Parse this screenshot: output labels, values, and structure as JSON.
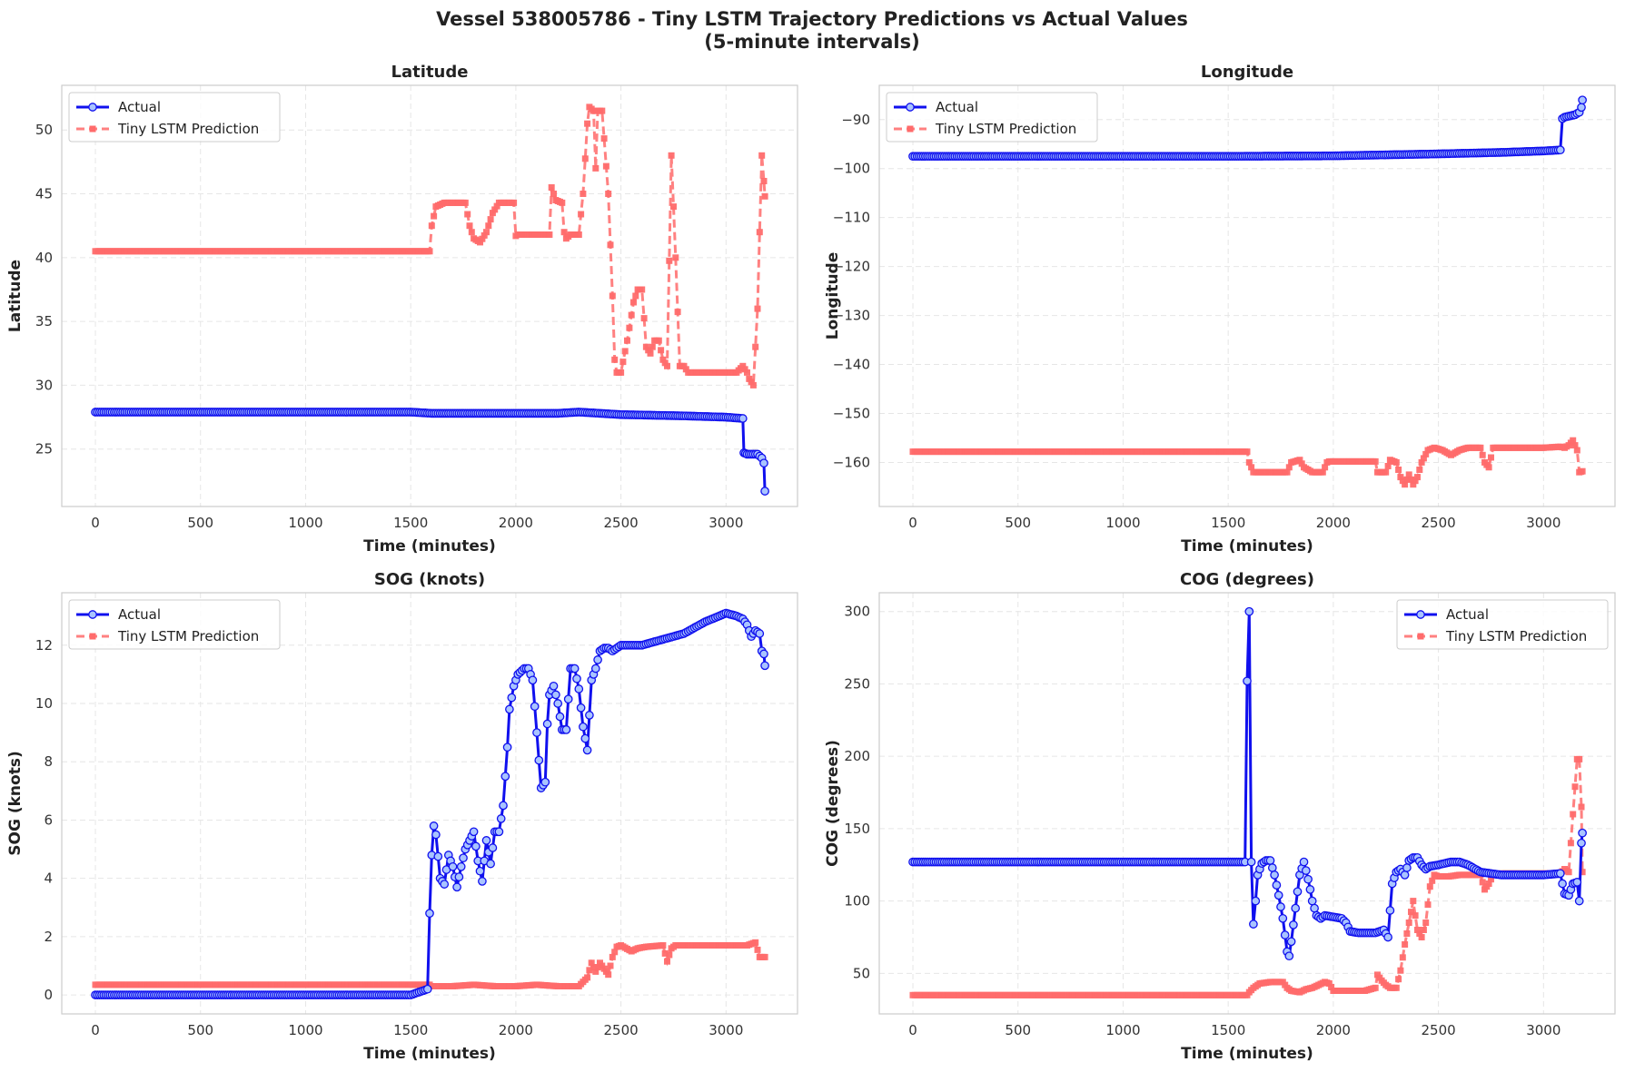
{
  "figure": {
    "title_line1": "Vessel 538005786 - Tiny LSTM Trajectory Predictions vs Actual Values",
    "title_line2": "(5-minute intervals)"
  },
  "colors": {
    "actual": "#1010ee",
    "actual_marker_fill": "#a9c4ff",
    "prediction": "#ff6b6b",
    "grid": "#e6e6e6",
    "frame": "#cccccc"
  },
  "chart_data": [
    {
      "type": "line",
      "title": "Latitude",
      "xlabel": "Time (minutes)",
      "ylabel": "Latitude",
      "xlim": [
        -160,
        3340
      ],
      "ylim": [
        20.5,
        53.5
      ],
      "xticks": [
        0,
        500,
        1000,
        1500,
        2000,
        2500,
        3000
      ],
      "yticks": [
        25,
        30,
        35,
        40,
        45,
        50
      ],
      "grid": true,
      "legend": "top-left",
      "series": [
        {
          "name": "Actual",
          "style": "solid-circle",
          "x": [
            0,
            500,
            1000,
            1500,
            1600,
            2000,
            2200,
            2300,
            2500,
            2800,
            3000,
            3080,
            3085,
            3100,
            3150,
            3170,
            3180,
            3185
          ],
          "y": [
            27.9,
            27.9,
            27.9,
            27.9,
            27.8,
            27.8,
            27.8,
            27.9,
            27.7,
            27.6,
            27.5,
            27.4,
            24.7,
            24.6,
            24.6,
            24.3,
            23.9,
            21.7
          ]
        },
        {
          "name": "Tiny LSTM Prediction",
          "style": "dashed-square",
          "x": [
            0,
            1590,
            1600,
            1620,
            1660,
            1700,
            1760,
            1780,
            1800,
            1830,
            1860,
            1890,
            1920,
            1960,
            1990,
            2000,
            2010,
            2040,
            2100,
            2160,
            2170,
            2190,
            2220,
            2230,
            2240,
            2260,
            2280,
            2300,
            2320,
            2340,
            2350,
            2370,
            2380,
            2390,
            2410,
            2440,
            2460,
            2470,
            2480,
            2500,
            2530,
            2560,
            2580,
            2600,
            2620,
            2640,
            2660,
            2680,
            2700,
            2720,
            2740,
            2760,
            2780,
            2800,
            2820,
            2850,
            2900,
            2950,
            3000,
            3050,
            3080,
            3100,
            3110,
            3130,
            3150,
            3170,
            3180,
            3185
          ],
          "y": [
            40.5,
            40.5,
            42.5,
            44,
            44.3,
            44.3,
            44.3,
            42.5,
            41.5,
            41.2,
            42,
            43.5,
            44.3,
            44.3,
            44.3,
            41.7,
            41.8,
            41.8,
            41.8,
            41.8,
            45.5,
            44.5,
            44.3,
            42,
            41.5,
            41.8,
            41.8,
            41.8,
            45,
            50.5,
            51.8,
            51.5,
            47,
            51.5,
            51.5,
            45,
            37,
            32,
            31,
            31,
            33.5,
            36.5,
            37.5,
            37.5,
            33,
            32.5,
            33.5,
            33.5,
            32,
            31.5,
            48,
            40,
            31.5,
            31.5,
            31,
            31,
            31,
            31,
            31,
            31,
            31.5,
            31,
            30.5,
            30,
            36,
            48,
            46,
            44.8
          ]
        }
      ]
    },
    {
      "type": "line",
      "title": "Longitude",
      "xlabel": "Time (minutes)",
      "ylabel": "Longitude",
      "xlim": [
        -160,
        3340
      ],
      "ylim": [
        -169,
        -83
      ],
      "xticks": [
        0,
        500,
        1000,
        1500,
        2000,
        2500,
        3000
      ],
      "yticks": [
        -160,
        -150,
        -140,
        -130,
        -120,
        -110,
        -100,
        -90
      ],
      "grid": true,
      "legend": "top-left",
      "series": [
        {
          "name": "Actual",
          "style": "solid-circle",
          "x": [
            0,
            1000,
            1500,
            2000,
            2500,
            2800,
            3000,
            3080,
            3090,
            3100,
            3150,
            3170,
            3180,
            3185
          ],
          "y": [
            -97.5,
            -97.5,
            -97.5,
            -97.4,
            -97,
            -96.7,
            -96.4,
            -96.2,
            -89.8,
            -89.5,
            -89,
            -88.5,
            -87.5,
            -86
          ]
        },
        {
          "name": "Tiny LSTM Prediction",
          "style": "dashed-square",
          "x": [
            0,
            1590,
            1600,
            1620,
            1700,
            1780,
            1800,
            1840,
            1860,
            1900,
            1950,
            1970,
            1980,
            2100,
            2200,
            2210,
            2230,
            2250,
            2270,
            2300,
            2320,
            2340,
            2360,
            2380,
            2400,
            2420,
            2450,
            2480,
            2520,
            2560,
            2580,
            2600,
            2640,
            2700,
            2720,
            2740,
            2760,
            2800,
            2900,
            3000,
            3080,
            3100,
            3120,
            3140,
            3160,
            3170,
            3185
          ],
          "y": [
            -157.8,
            -157.8,
            -160,
            -162,
            -162,
            -162,
            -160,
            -159.5,
            -161,
            -162,
            -162,
            -160,
            -159.8,
            -159.8,
            -159.8,
            -162,
            -162,
            -162,
            -159.5,
            -160,
            -163,
            -164.5,
            -162.5,
            -164.5,
            -163,
            -160,
            -157.5,
            -157,
            -157.5,
            -158.5,
            -158,
            -157.5,
            -157,
            -157,
            -160,
            -161,
            -157,
            -157,
            -157,
            -157,
            -156.8,
            -157,
            -156.5,
            -155.5,
            -157.5,
            -162,
            -161.8
          ]
        }
      ]
    },
    {
      "type": "line",
      "title": "SOG (knots)",
      "xlabel": "Time (minutes)",
      "ylabel": "SOG (knots)",
      "xlim": [
        -160,
        3340
      ],
      "ylim": [
        -0.65,
        13.8
      ],
      "xticks": [
        0,
        500,
        1000,
        1500,
        2000,
        2500,
        3000
      ],
      "yticks": [
        0,
        2,
        4,
        6,
        8,
        10,
        12
      ],
      "grid": true,
      "legend": "top-left",
      "series": [
        {
          "name": "Actual",
          "style": "solid-circle",
          "x": [
            0,
            500,
            1000,
            1500,
            1580,
            1590,
            1600,
            1610,
            1620,
            1640,
            1660,
            1680,
            1700,
            1720,
            1740,
            1760,
            1780,
            1800,
            1820,
            1840,
            1850,
            1860,
            1880,
            1900,
            1920,
            1940,
            1960,
            1970,
            1990,
            2010,
            2040,
            2060,
            2080,
            2100,
            2120,
            2140,
            2150,
            2160,
            2180,
            2200,
            2220,
            2240,
            2260,
            2280,
            2300,
            2320,
            2340,
            2360,
            2370,
            2380,
            2390,
            2400,
            2420,
            2440,
            2460,
            2500,
            2600,
            2700,
            2800,
            2900,
            3000,
            3050,
            3080,
            3100,
            3120,
            3140,
            3160,
            3170,
            3180,
            3185
          ],
          "y": [
            0,
            0,
            0,
            0,
            0.2,
            2.8,
            4.8,
            5.8,
            5.5,
            4.0,
            3.8,
            4.8,
            4.4,
            3.7,
            4.4,
            5.0,
            5.3,
            5.6,
            4.6,
            3.9,
            4.6,
            5.3,
            4.5,
            5.6,
            5.6,
            6.5,
            8.5,
            9.8,
            10.6,
            11.0,
            11.2,
            11.2,
            10.8,
            9.0,
            7.1,
            7.3,
            9.3,
            10.3,
            10.6,
            10.0,
            9.1,
            9.1,
            11.2,
            11.2,
            10.5,
            9.2,
            8.4,
            10.8,
            11.0,
            11.2,
            11.5,
            11.8,
            11.9,
            11.9,
            11.8,
            12.0,
            12.0,
            12.2,
            12.4,
            12.8,
            13.1,
            13.0,
            12.9,
            12.7,
            12.3,
            12.5,
            12.4,
            11.8,
            11.7,
            11.3
          ]
        },
        {
          "name": "Tiny LSTM Prediction",
          "style": "dashed-square",
          "x": [
            0,
            1590,
            1600,
            1700,
            1800,
            1900,
            2000,
            2100,
            2200,
            2300,
            2340,
            2360,
            2380,
            2400,
            2440,
            2460,
            2480,
            2500,
            2550,
            2580,
            2620,
            2700,
            2720,
            2740,
            2760,
            2800,
            2900,
            3000,
            3100,
            3140,
            3160,
            3185
          ],
          "y": [
            0.35,
            0.35,
            0.3,
            0.3,
            0.35,
            0.3,
            0.3,
            0.35,
            0.3,
            0.3,
            0.6,
            1.1,
            0.8,
            1.1,
            0.7,
            1.3,
            1.65,
            1.7,
            1.5,
            1.6,
            1.65,
            1.7,
            1.15,
            1.6,
            1.7,
            1.7,
            1.7,
            1.7,
            1.7,
            1.8,
            1.3,
            1.3
          ]
        }
      ]
    },
    {
      "type": "line",
      "title": "COG (degrees)",
      "xlabel": "Time (minutes)",
      "ylabel": "COG (degrees)",
      "xlim": [
        -160,
        3340
      ],
      "ylim": [
        22,
        313
      ],
      "xticks": [
        0,
        500,
        1000,
        1500,
        2000,
        2500,
        3000
      ],
      "yticks": [
        50,
        100,
        150,
        200,
        250,
        300
      ],
      "grid": true,
      "legend": "top-right",
      "series": [
        {
          "name": "Actual",
          "style": "solid-circle",
          "x": [
            0,
            500,
            1000,
            1500,
            1580,
            1590,
            1600,
            1610,
            1620,
            1630,
            1640,
            1660,
            1680,
            1700,
            1720,
            1740,
            1760,
            1780,
            1790,
            1800,
            1820,
            1840,
            1860,
            1880,
            1890,
            1900,
            1920,
            1940,
            1960,
            2000,
            2040,
            2060,
            2080,
            2120,
            2160,
            2200,
            2240,
            2260,
            2280,
            2300,
            2320,
            2340,
            2360,
            2380,
            2400,
            2420,
            2440,
            2460,
            2500,
            2560,
            2600,
            2640,
            2700,
            2800,
            2900,
            3000,
            3080,
            3100,
            3120,
            3140,
            3160,
            3170,
            3180,
            3185
          ],
          "y": [
            127,
            127,
            127,
            127,
            127,
            252,
            300,
            127,
            84,
            100,
            118,
            126,
            128,
            128,
            118,
            104,
            88,
            65,
            62,
            72,
            95,
            118,
            127,
            115,
            108,
            100,
            90,
            88,
            90,
            89,
            88,
            85,
            79,
            78,
            78,
            78,
            80,
            75,
            112,
            120,
            122,
            118,
            128,
            130,
            130,
            125,
            122,
            124,
            125,
            127,
            127,
            125,
            120,
            118,
            118,
            118,
            119,
            105,
            104,
            112,
            113,
            100,
            140,
            147
          ]
        },
        {
          "name": "Tiny LSTM Prediction",
          "style": "dashed-square",
          "x": [
            0,
            1590,
            1600,
            1620,
            1650,
            1700,
            1760,
            1780,
            1800,
            1840,
            1870,
            1900,
            1930,
            1960,
            1980,
            2000,
            2060,
            2100,
            2150,
            2200,
            2210,
            2230,
            2250,
            2270,
            2300,
            2320,
            2340,
            2360,
            2380,
            2390,
            2400,
            2420,
            2440,
            2460,
            2480,
            2500,
            2550,
            2600,
            2650,
            2700,
            2720,
            2740,
            2760,
            2800,
            2900,
            3000,
            3050,
            3080,
            3100,
            3120,
            3140,
            3160,
            3170,
            3180,
            3185
          ],
          "y": [
            35,
            35,
            37,
            40,
            43,
            44,
            44,
            40,
            38,
            37,
            39,
            40,
            42,
            44,
            43,
            38,
            38,
            38,
            38,
            40,
            49,
            45,
            42,
            40,
            40,
            52,
            70,
            85,
            100,
            90,
            80,
            75,
            85,
            110,
            118,
            117,
            117,
            118,
            118,
            118,
            108,
            112,
            118,
            119,
            119,
            119,
            119,
            119,
            122,
            120,
            160,
            198,
            198,
            165,
            120
          ]
        }
      ]
    }
  ]
}
